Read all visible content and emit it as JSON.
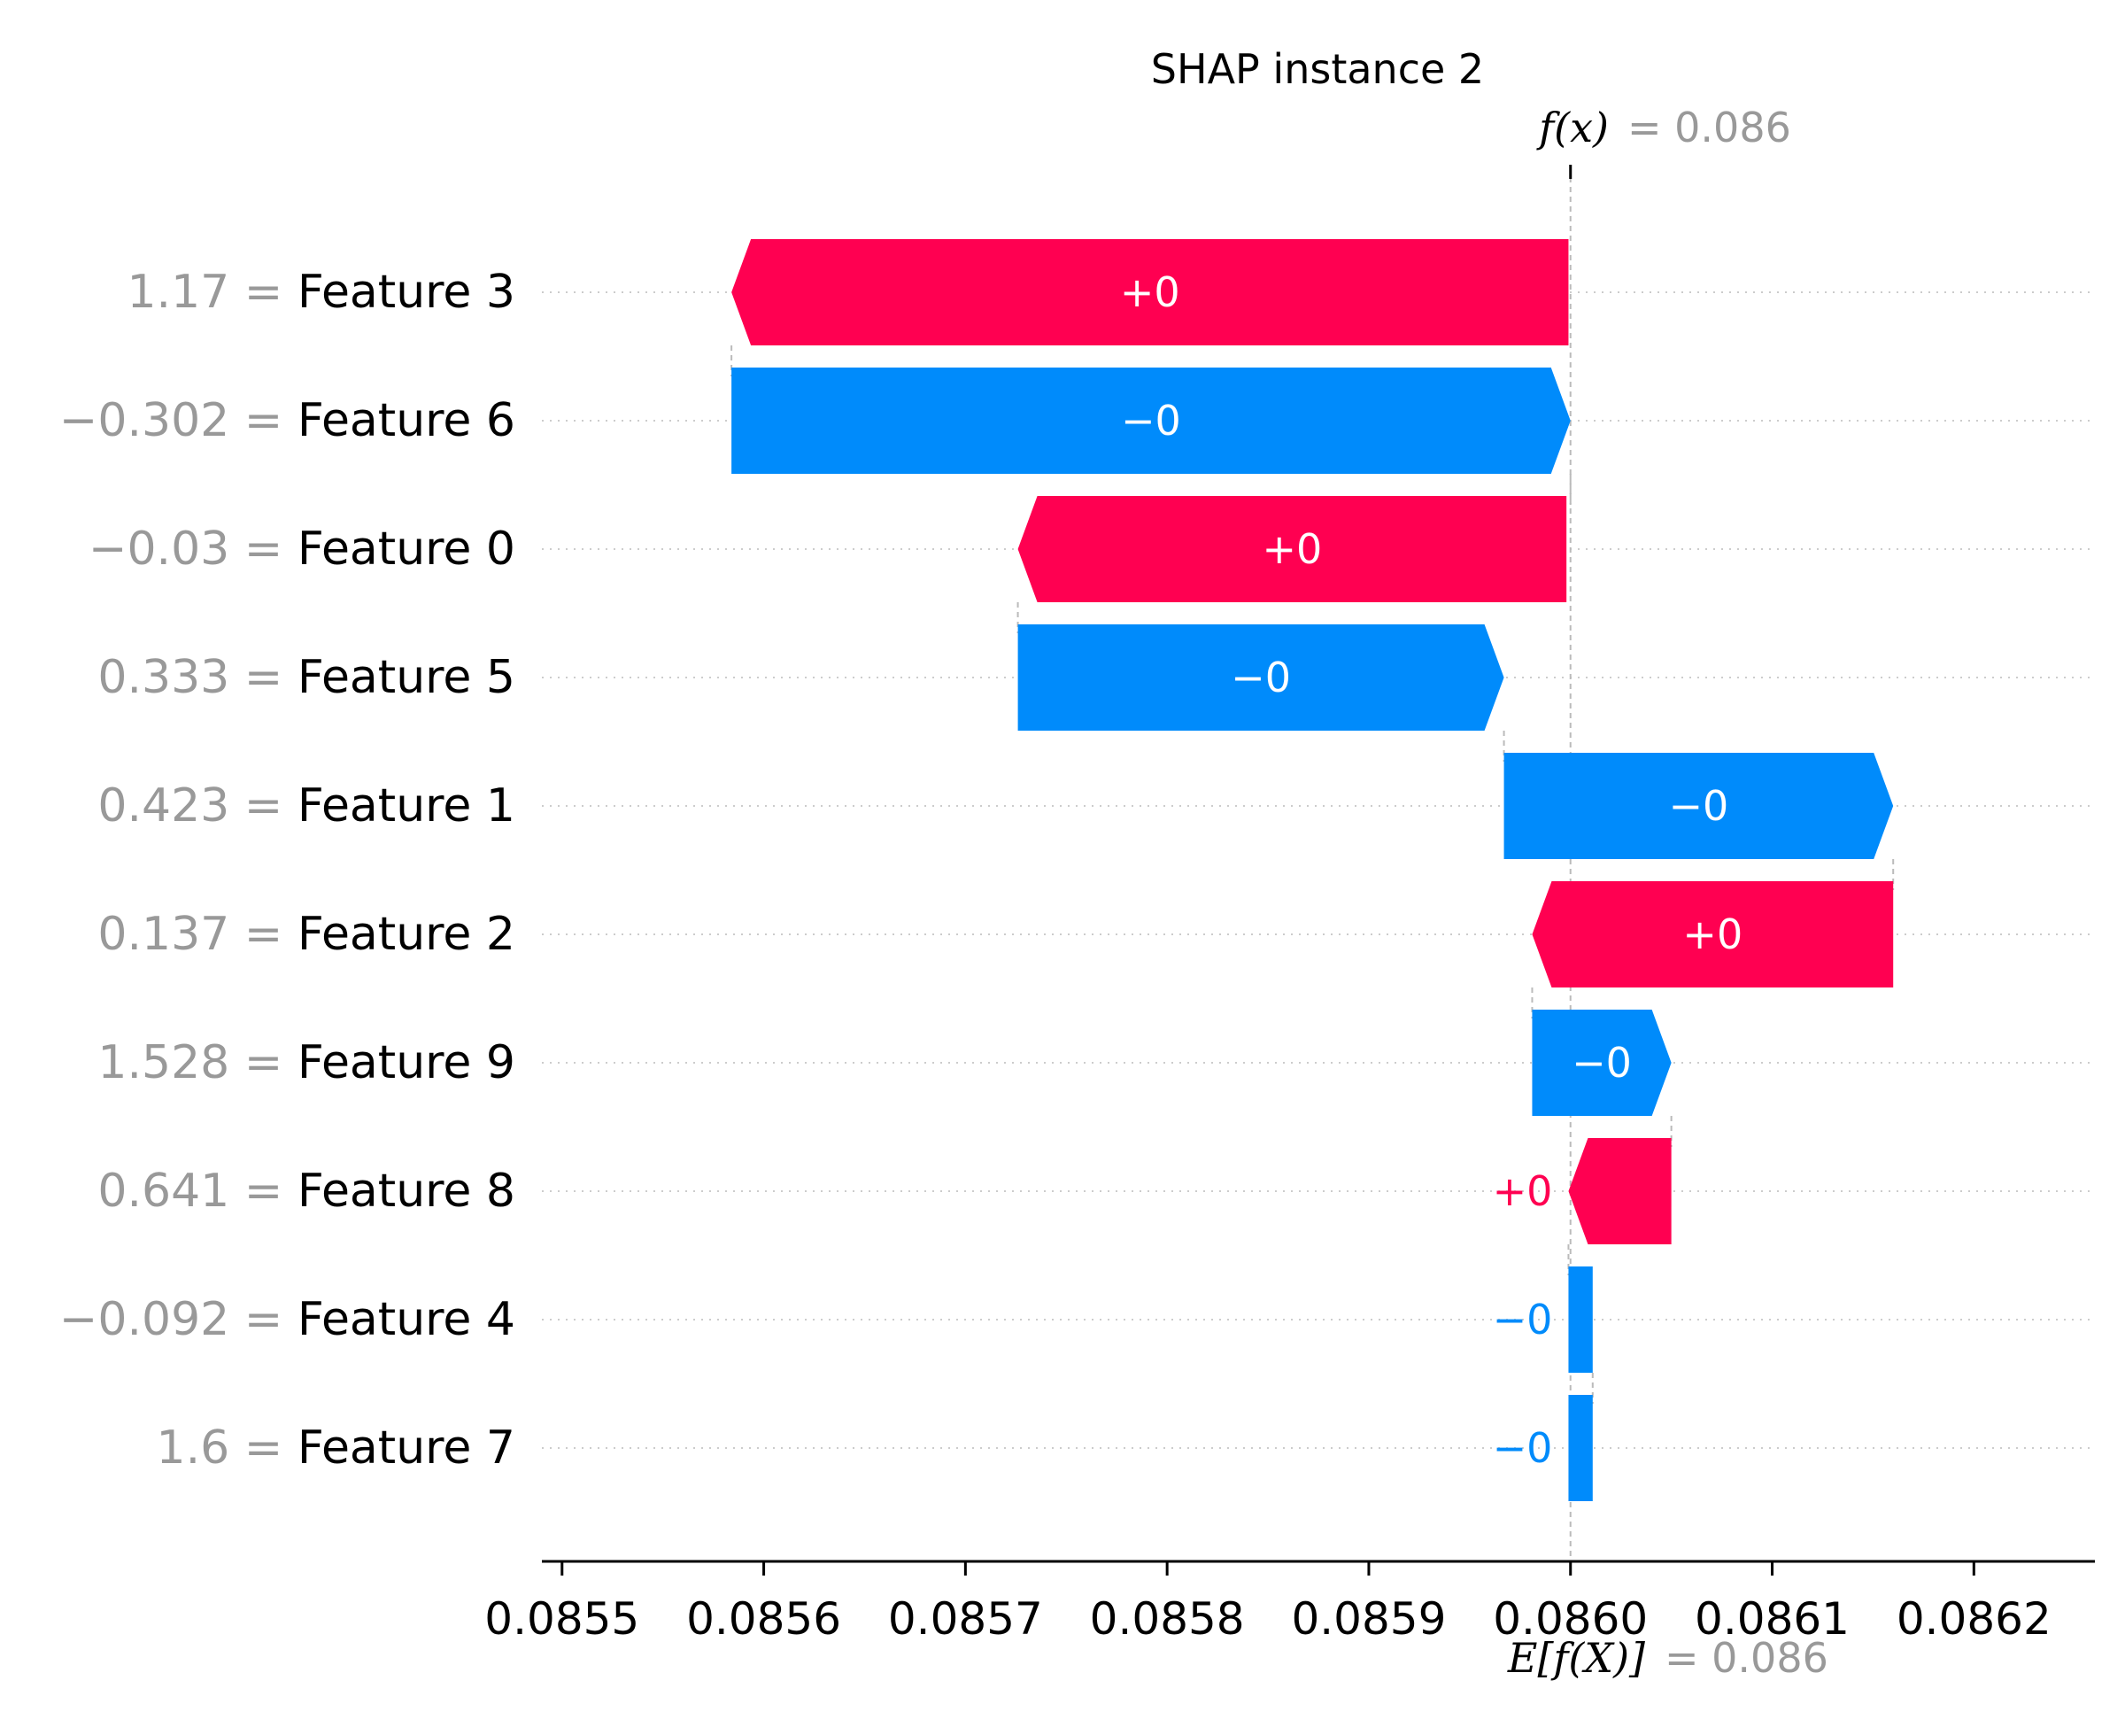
{
  "chart_data": {
    "type": "waterfall",
    "title": "SHAP instance 2",
    "fx_label": "f(x)",
    "fx_value_text": "= 0.086",
    "efx_label": "E[f(X)]",
    "efx_value_text": "= 0.086",
    "base_value": 0.086,
    "fx_value": 0.086,
    "xlim": [
      0.08549,
      0.08626
    ],
    "xticks": [
      0.0855,
      0.0856,
      0.0857,
      0.0858,
      0.0859,
      0.086,
      0.0861,
      0.0862
    ],
    "xtick_labels": [
      "0.0855",
      "0.0856",
      "0.0857",
      "0.0858",
      "0.0859",
      "0.0860",
      "0.0861",
      "0.0862"
    ],
    "grid": "dotted horizontal per row",
    "features": [
      {
        "value": "1.17",
        "name": "Feature 3",
        "label": "+0",
        "start": 0.085999,
        "end": 0.085584,
        "sign": "positive"
      },
      {
        "value": "−0.302",
        "name": "Feature 6",
        "label": "−0",
        "start": 0.085584,
        "end": 0.086,
        "sign": "negative"
      },
      {
        "value": "−0.03",
        "name": "Feature 0",
        "label": "+0",
        "start": 0.085998,
        "end": 0.085726,
        "sign": "positive"
      },
      {
        "value": "0.333",
        "name": "Feature 5",
        "label": "−0",
        "start": 0.085726,
        "end": 0.085967,
        "sign": "negative"
      },
      {
        "value": "0.423",
        "name": "Feature 1",
        "label": "−0",
        "start": 0.085967,
        "end": 0.08616,
        "sign": "negative"
      },
      {
        "value": "0.137",
        "name": "Feature 2",
        "label": "+0",
        "start": 0.08616,
        "end": 0.085981,
        "sign": "positive"
      },
      {
        "value": "1.528",
        "name": "Feature 9",
        "label": "−0",
        "start": 0.085981,
        "end": 0.08605,
        "sign": "negative"
      },
      {
        "value": "0.641",
        "name": "Feature 8",
        "label": "+0",
        "start": 0.08605,
        "end": 0.085999,
        "sign": "positive"
      },
      {
        "value": "−0.092",
        "name": "Feature 4",
        "label": "−0",
        "start": 0.085999,
        "end": 0.086011,
        "sign": "negative"
      },
      {
        "value": "1.6",
        "name": "Feature 7",
        "label": "−0",
        "start": 0.086011,
        "end": 0.085999,
        "sign": "negative"
      }
    ],
    "colors": {
      "positive": "#ff0051",
      "negative": "#008bfb",
      "value_text": "#999999",
      "name_text": "#000000",
      "inside_label": "#ffffff"
    }
  }
}
